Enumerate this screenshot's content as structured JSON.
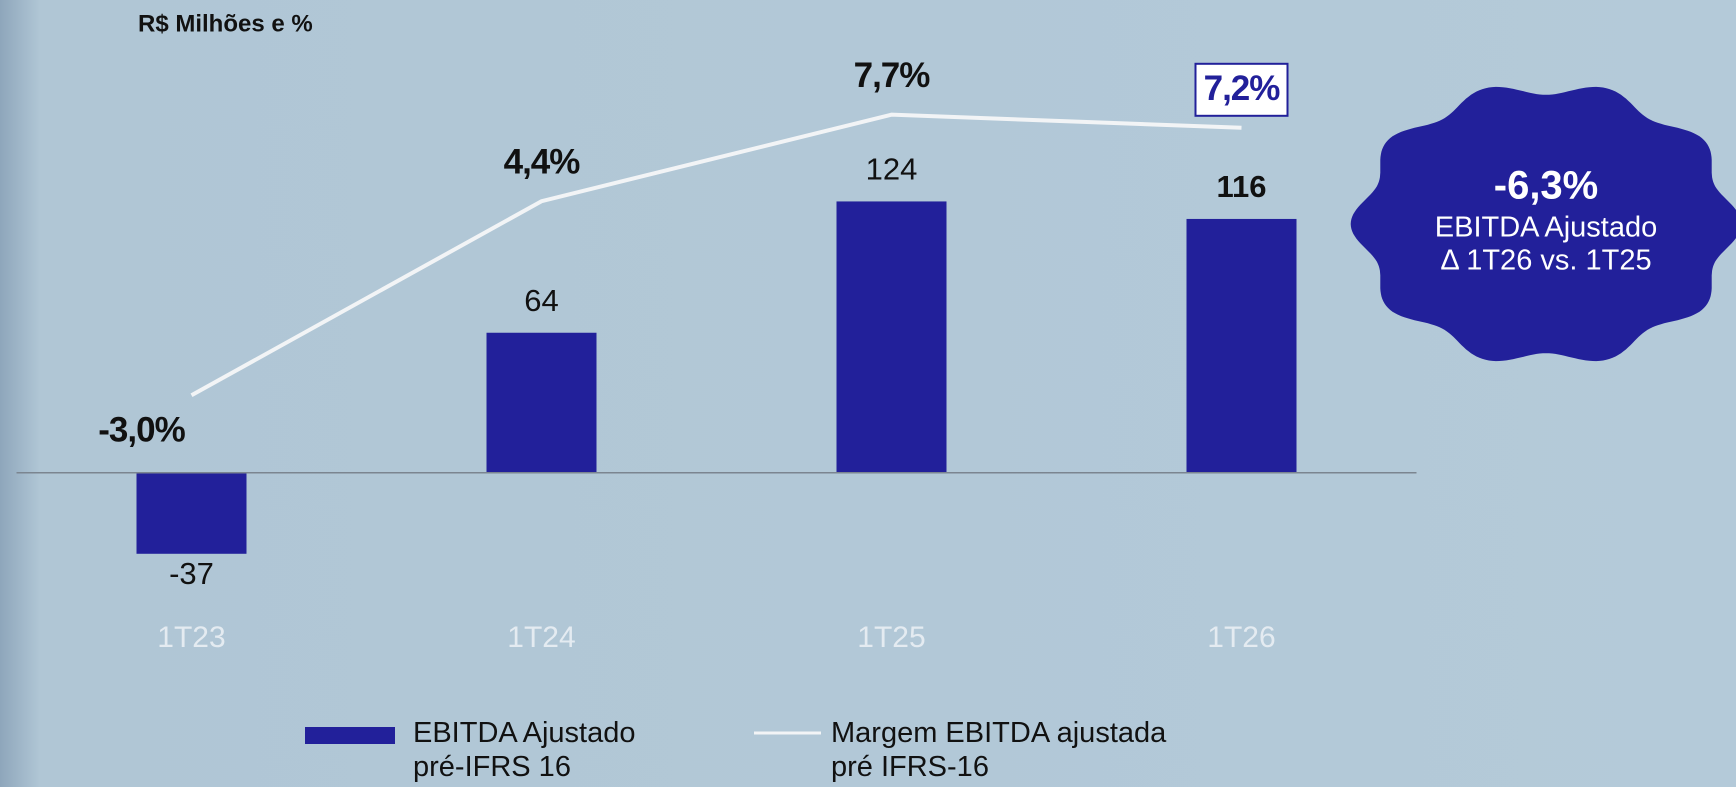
{
  "chart_data": {
    "type": "bar_line",
    "title": "R$ Milhões e %",
    "categories": [
      "1T23",
      "1T24",
      "1T25",
      "1T26"
    ],
    "series": [
      {
        "name": "EBITDA Ajustado pré-IFRS 16",
        "color": "#22209a",
        "type": "bar",
        "values": [
          -37,
          64,
          124,
          116
        ]
      },
      {
        "name": "Margem EBITDA ajustada pré IFRS-16",
        "color": "#f2f4f6",
        "type": "line",
        "axis": "y2",
        "values": [
          -3.0,
          4.4,
          7.7,
          7.2
        ],
        "value_labels": [
          "-3,0%",
          "4,4%",
          "7,7%",
          "7,2%"
        ]
      }
    ],
    "ylim": [
      -70,
      190
    ],
    "y2lim": [
      -11.8,
      9.9
    ],
    "annotation": {
      "value": "-6,3%",
      "lines": [
        "EBITDA Ajustado",
        "Δ 1T26 vs. 1T25"
      ]
    }
  }
}
